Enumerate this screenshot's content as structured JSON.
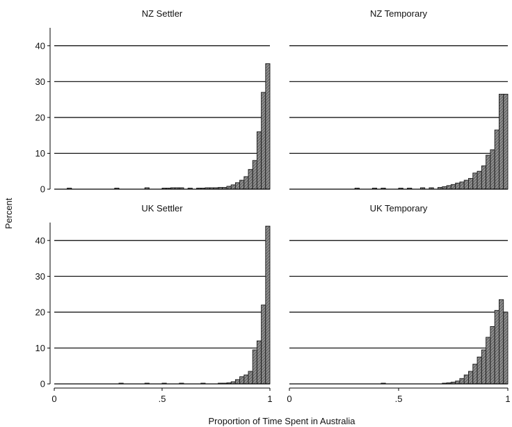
{
  "figure": {
    "ylabel": "Percent",
    "xlabel": "Proportion of Time Spent in Australia"
  },
  "chart_data": [
    {
      "type": "bar",
      "title": "NZ Settler",
      "xlabel": "Proportion of Time Spent in Australia",
      "ylabel": "Percent",
      "xlim": [
        0,
        1
      ],
      "ylim": [
        0,
        45
      ],
      "xticks": [
        "0",
        ".5",
        "1"
      ],
      "yticks": [
        "0",
        "10",
        "20",
        "30",
        "40"
      ],
      "bin_width": 0.02,
      "grid": true,
      "bins": [
        {
          "x": 0.08,
          "y": 0.3
        },
        {
          "x": 0.3,
          "y": 0.3
        },
        {
          "x": 0.44,
          "y": 0.4
        },
        {
          "x": 0.52,
          "y": 0.3
        },
        {
          "x": 0.54,
          "y": 0.3
        },
        {
          "x": 0.56,
          "y": 0.4
        },
        {
          "x": 0.58,
          "y": 0.4
        },
        {
          "x": 0.6,
          "y": 0.4
        },
        {
          "x": 0.64,
          "y": 0.3
        },
        {
          "x": 0.68,
          "y": 0.3
        },
        {
          "x": 0.7,
          "y": 0.3
        },
        {
          "x": 0.72,
          "y": 0.4
        },
        {
          "x": 0.74,
          "y": 0.4
        },
        {
          "x": 0.76,
          "y": 0.4
        },
        {
          "x": 0.78,
          "y": 0.5
        },
        {
          "x": 0.8,
          "y": 0.5
        },
        {
          "x": 0.82,
          "y": 0.8
        },
        {
          "x": 0.84,
          "y": 1.2
        },
        {
          "x": 0.86,
          "y": 1.8
        },
        {
          "x": 0.88,
          "y": 2.5
        },
        {
          "x": 0.9,
          "y": 3.5
        },
        {
          "x": 0.92,
          "y": 5.5
        },
        {
          "x": 0.94,
          "y": 8.0
        },
        {
          "x": 0.96,
          "y": 16.0
        },
        {
          "x": 0.98,
          "y": 27.0
        },
        {
          "x": 1.0,
          "y": 35.0
        }
      ]
    },
    {
      "type": "bar",
      "title": "NZ Temporary",
      "xlabel": "Proportion of Time Spent in Australia",
      "ylabel": "Percent",
      "xlim": [
        0,
        1
      ],
      "ylim": [
        0,
        45
      ],
      "xticks": [
        "0",
        ".5",
        "1"
      ],
      "yticks": [
        "0",
        "10",
        "20",
        "30",
        "40"
      ],
      "bin_width": 0.02,
      "grid": true,
      "bins": [
        {
          "x": 0.32,
          "y": 0.3
        },
        {
          "x": 0.4,
          "y": 0.3
        },
        {
          "x": 0.44,
          "y": 0.3
        },
        {
          "x": 0.52,
          "y": 0.3
        },
        {
          "x": 0.56,
          "y": 0.3
        },
        {
          "x": 0.62,
          "y": 0.4
        },
        {
          "x": 0.66,
          "y": 0.4
        },
        {
          "x": 0.7,
          "y": 0.5
        },
        {
          "x": 0.72,
          "y": 0.7
        },
        {
          "x": 0.74,
          "y": 1.0
        },
        {
          "x": 0.76,
          "y": 1.3
        },
        {
          "x": 0.78,
          "y": 1.7
        },
        {
          "x": 0.8,
          "y": 2.0
        },
        {
          "x": 0.82,
          "y": 2.5
        },
        {
          "x": 0.84,
          "y": 3.0
        },
        {
          "x": 0.86,
          "y": 4.5
        },
        {
          "x": 0.88,
          "y": 5.0
        },
        {
          "x": 0.9,
          "y": 6.5
        },
        {
          "x": 0.92,
          "y": 9.5
        },
        {
          "x": 0.94,
          "y": 11.0
        },
        {
          "x": 0.96,
          "y": 16.5
        },
        {
          "x": 0.98,
          "y": 26.5
        },
        {
          "x": 1.0,
          "y": 26.5
        }
      ]
    },
    {
      "type": "bar",
      "title": "UK Settler",
      "xlabel": "Proportion of Time Spent in Australia",
      "ylabel": "Percent",
      "xlim": [
        0,
        1
      ],
      "ylim": [
        0,
        45
      ],
      "xticks": [
        "0",
        ".5",
        "1"
      ],
      "yticks": [
        "0",
        "10",
        "20",
        "30",
        "40"
      ],
      "bin_width": 0.02,
      "grid": true,
      "bins": [
        {
          "x": 0.32,
          "y": 0.2
        },
        {
          "x": 0.44,
          "y": 0.2
        },
        {
          "x": 0.52,
          "y": 0.2
        },
        {
          "x": 0.6,
          "y": 0.2
        },
        {
          "x": 0.7,
          "y": 0.2
        },
        {
          "x": 0.78,
          "y": 0.2
        },
        {
          "x": 0.8,
          "y": 0.2
        },
        {
          "x": 0.82,
          "y": 0.3
        },
        {
          "x": 0.84,
          "y": 0.6
        },
        {
          "x": 0.86,
          "y": 1.2
        },
        {
          "x": 0.88,
          "y": 2.0
        },
        {
          "x": 0.9,
          "y": 2.5
        },
        {
          "x": 0.92,
          "y": 3.5
        },
        {
          "x": 0.94,
          "y": 9.5
        },
        {
          "x": 0.96,
          "y": 12.0
        },
        {
          "x": 0.98,
          "y": 22.0
        },
        {
          "x": 1.0,
          "y": 44.0
        }
      ]
    },
    {
      "type": "bar",
      "title": "UK Temporary",
      "xlabel": "Proportion of Time Spent in Australia",
      "ylabel": "Percent",
      "xlim": [
        0,
        1
      ],
      "ylim": [
        0,
        45
      ],
      "xticks": [
        "0",
        ".5",
        "1"
      ],
      "yticks": [
        "0",
        "10",
        "20",
        "30",
        "40"
      ],
      "bin_width": 0.02,
      "grid": true,
      "bins": [
        {
          "x": 0.44,
          "y": 0.2
        },
        {
          "x": 0.72,
          "y": 0.2
        },
        {
          "x": 0.74,
          "y": 0.3
        },
        {
          "x": 0.76,
          "y": 0.5
        },
        {
          "x": 0.78,
          "y": 0.8
        },
        {
          "x": 0.8,
          "y": 1.5
        },
        {
          "x": 0.82,
          "y": 2.5
        },
        {
          "x": 0.84,
          "y": 3.5
        },
        {
          "x": 0.86,
          "y": 5.5
        },
        {
          "x": 0.88,
          "y": 7.5
        },
        {
          "x": 0.9,
          "y": 9.5
        },
        {
          "x": 0.92,
          "y": 13.0
        },
        {
          "x": 0.94,
          "y": 16.0
        },
        {
          "x": 0.96,
          "y": 20.5
        },
        {
          "x": 0.98,
          "y": 23.5
        },
        {
          "x": 1.0,
          "y": 20.0
        }
      ]
    }
  ]
}
